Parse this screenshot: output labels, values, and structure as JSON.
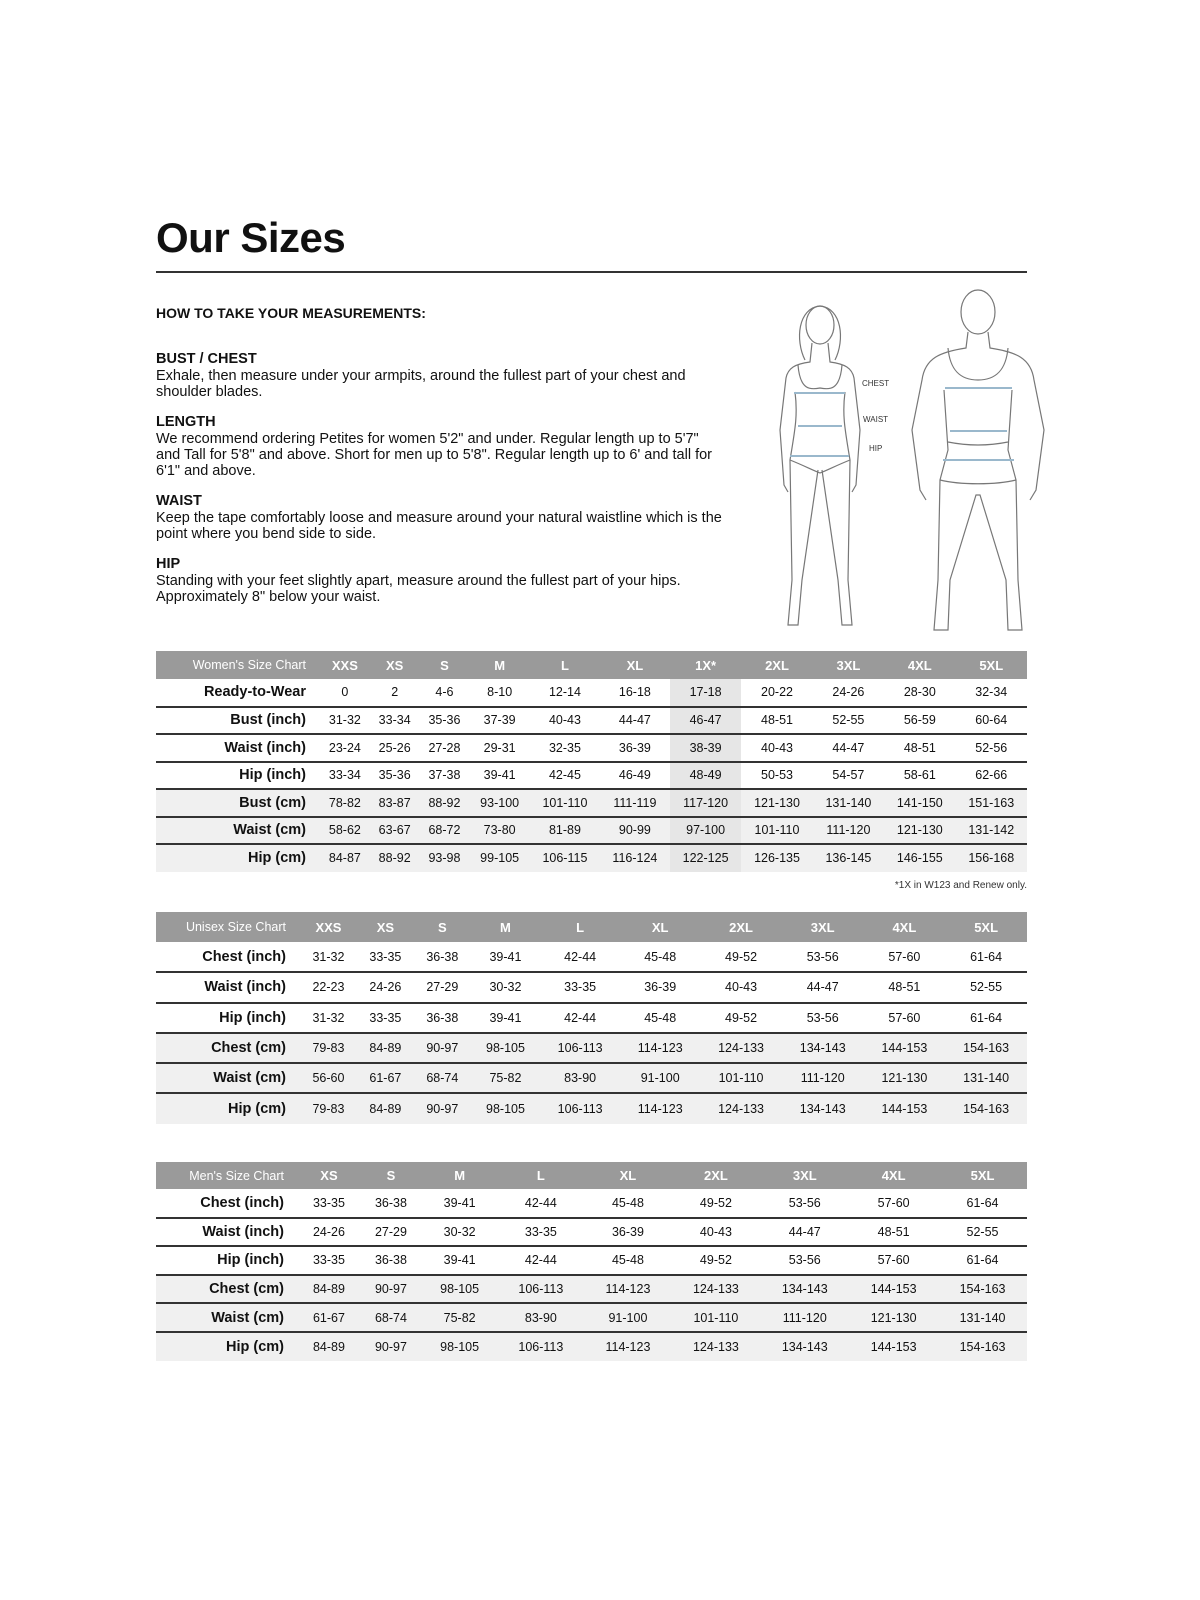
{
  "title": "Our Sizes",
  "howto_heading": "HOW TO TAKE YOUR MEASUREMENTS:",
  "sections": [
    {
      "heading": "BUST / CHEST",
      "text": "Exhale, then measure under your armpits, around the fullest part of your chest and shoulder blades."
    },
    {
      "heading": "LENGTH",
      "text": "We recommend ordering Petites for women 5'2\" and under. Regular length up to 5'7\" and Tall for 5'8\" and above. Short for men up to 5'8\". Regular length up to 6' and tall for 6'1\" and above."
    },
    {
      "heading": "WAIST",
      "text": "Keep the tape comfortably loose and measure around your natural waistline which is the point where you bend side to side."
    },
    {
      "heading": "HIP",
      "text": "Standing with your feet slightly apart, measure around the fullest part of your hips. Approximately 8\" below your waist."
    }
  ],
  "figure_labels": {
    "chest": "CHEST",
    "waist": "WAIST",
    "hip": "HIP"
  },
  "colors": {
    "header_bg": "#9a9a9a",
    "measure_line": "#9ab8cc",
    "stripe": "#f0f0f0",
    "highlight": "#e6e6e6"
  },
  "womens": {
    "title": "Women's Size Chart",
    "sizes": [
      "XXS",
      "XS",
      "S",
      "M",
      "L",
      "XL",
      "1X*",
      "2XL",
      "3XL",
      "4XL",
      "5XL"
    ],
    "highlight_size": "1X*",
    "rows": [
      {
        "label": "Ready-to-Wear",
        "values": [
          "0",
          "2",
          "4-6",
          "8-10",
          "12-14",
          "16-18",
          "17-18",
          "20-22",
          "24-26",
          "28-30",
          "32-34"
        ]
      },
      {
        "label": "Bust (inch)",
        "values": [
          "31-32",
          "33-34",
          "35-36",
          "37-39",
          "40-43",
          "44-47",
          "46-47",
          "48-51",
          "52-55",
          "56-59",
          "60-64"
        ]
      },
      {
        "label": "Waist (inch)",
        "values": [
          "23-24",
          "25-26",
          "27-28",
          "29-31",
          "32-35",
          "36-39",
          "38-39",
          "40-43",
          "44-47",
          "48-51",
          "52-56"
        ]
      },
      {
        "label": "Hip (inch)",
        "values": [
          "33-34",
          "35-36",
          "37-38",
          "39-41",
          "42-45",
          "46-49",
          "48-49",
          "50-53",
          "54-57",
          "58-61",
          "62-66"
        ]
      },
      {
        "label": "Bust (cm)",
        "values": [
          "78-82",
          "83-87",
          "88-92",
          "93-100",
          "101-110",
          "111-119",
          "117-120",
          "121-130",
          "131-140",
          "141-150",
          "151-163"
        ]
      },
      {
        "label": "Waist (cm)",
        "values": [
          "58-62",
          "63-67",
          "68-72",
          "73-80",
          "81-89",
          "90-99",
          "97-100",
          "101-110",
          "111-120",
          "121-130",
          "131-142"
        ]
      },
      {
        "label": "Hip (cm)",
        "values": [
          "84-87",
          "88-92",
          "93-98",
          "99-105",
          "106-115",
          "116-124",
          "122-125",
          "126-135",
          "136-145",
          "146-155",
          "156-168"
        ]
      }
    ],
    "note": "*1X in W123 and Renew only."
  },
  "unisex": {
    "title": "Unisex Size Chart",
    "sizes": [
      "XXS",
      "XS",
      "S",
      "M",
      "L",
      "XL",
      "2XL",
      "3XL",
      "4XL",
      "5XL"
    ],
    "rows": [
      {
        "label": "Chest (inch)",
        "values": [
          "31-32",
          "33-35",
          "36-38",
          "39-41",
          "42-44",
          "45-48",
          "49-52",
          "53-56",
          "57-60",
          "61-64"
        ]
      },
      {
        "label": "Waist (inch)",
        "values": [
          "22-23",
          "24-26",
          "27-29",
          "30-32",
          "33-35",
          "36-39",
          "40-43",
          "44-47",
          "48-51",
          "52-55"
        ]
      },
      {
        "label": "Hip (inch)",
        "values": [
          "31-32",
          "33-35",
          "36-38",
          "39-41",
          "42-44",
          "45-48",
          "49-52",
          "53-56",
          "57-60",
          "61-64"
        ]
      },
      {
        "label": "Chest (cm)",
        "values": [
          "79-83",
          "84-89",
          "90-97",
          "98-105",
          "106-113",
          "114-123",
          "124-133",
          "134-143",
          "144-153",
          "154-163"
        ]
      },
      {
        "label": "Waist (cm)",
        "values": [
          "56-60",
          "61-67",
          "68-74",
          "75-82",
          "83-90",
          "91-100",
          "101-110",
          "111-120",
          "121-130",
          "131-140"
        ]
      },
      {
        "label": "Hip (cm)",
        "values": [
          "79-83",
          "84-89",
          "90-97",
          "98-105",
          "106-113",
          "114-123",
          "124-133",
          "134-143",
          "144-153",
          "154-163"
        ]
      }
    ]
  },
  "mens": {
    "title": "Men's Size Chart",
    "sizes": [
      "XS",
      "S",
      "M",
      "L",
      "XL",
      "2XL",
      "3XL",
      "4XL",
      "5XL"
    ],
    "rows": [
      {
        "label": "Chest (inch)",
        "values": [
          "33-35",
          "36-38",
          "39-41",
          "42-44",
          "45-48",
          "49-52",
          "53-56",
          "57-60",
          "61-64"
        ]
      },
      {
        "label": "Waist (inch)",
        "values": [
          "24-26",
          "27-29",
          "30-32",
          "33-35",
          "36-39",
          "40-43",
          "44-47",
          "48-51",
          "52-55"
        ]
      },
      {
        "label": "Hip (inch)",
        "values": [
          "33-35",
          "36-38",
          "39-41",
          "42-44",
          "45-48",
          "49-52",
          "53-56",
          "57-60",
          "61-64"
        ]
      },
      {
        "label": "Chest (cm)",
        "values": [
          "84-89",
          "90-97",
          "98-105",
          "106-113",
          "114-123",
          "124-133",
          "134-143",
          "144-153",
          "154-163"
        ]
      },
      {
        "label": "Waist (cm)",
        "values": [
          "61-67",
          "68-74",
          "75-82",
          "83-90",
          "91-100",
          "101-110",
          "111-120",
          "121-130",
          "131-140"
        ]
      },
      {
        "label": "Hip (cm)",
        "values": [
          "84-89",
          "90-97",
          "98-105",
          "106-113",
          "114-123",
          "124-133",
          "134-143",
          "144-153",
          "154-163"
        ]
      }
    ]
  }
}
